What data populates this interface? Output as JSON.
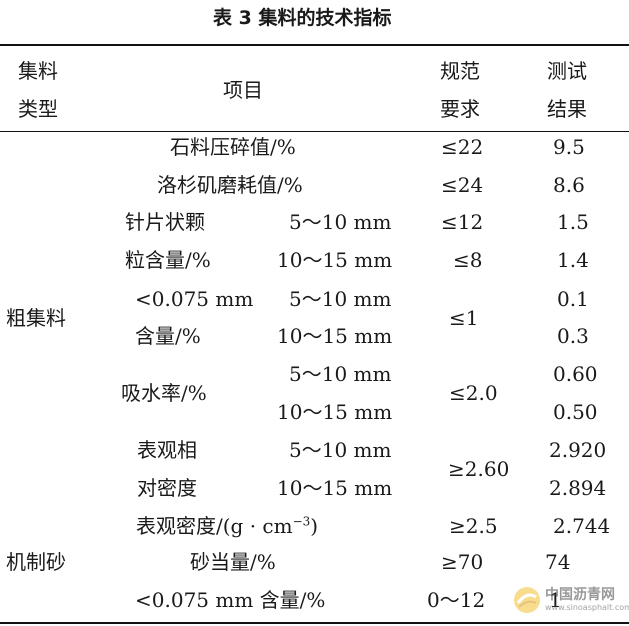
{
  "title": "表 3    集料的技术指标",
  "header": {
    "type_line1": "集料",
    "type_line2": "类型",
    "item": "项目",
    "spec_line1": "规范",
    "spec_line2": "要求",
    "result_line1": "测试",
    "result_line2": "结果"
  },
  "groups": {
    "coarse": "粗集料",
    "sand": "机制砂"
  },
  "rows": {
    "crush": {
      "item": "石料压碎值/%",
      "spec": "≤22",
      "result": "9.5"
    },
    "la": {
      "item": "洛杉矶磨耗值/%",
      "spec": "≤24",
      "result": "8.6"
    },
    "flaky_l1": "针片状颗",
    "flaky_l2": "粒含量/%",
    "flaky_s1": "5～10 mm",
    "flaky_s2": "10～15 mm",
    "flaky_spec1": "≤12",
    "flaky_spec2": "≤8",
    "flaky_r1": "1.5",
    "flaky_r2": "1.4",
    "fines_l1": "<0.075 mm",
    "fines_l2": "含量/%",
    "fines_s1": "5～10 mm",
    "fines_s2": "10～15 mm",
    "fines_spec": "≤1",
    "fines_r1": "0.1",
    "fines_r2": "0.3",
    "abs_l": "吸水率/%",
    "abs_s1": "5～10 mm",
    "abs_s2": "10～15 mm",
    "abs_spec": "≤2.0",
    "abs_r1": "0.60",
    "abs_r2": "0.50",
    "rel_l1": "表观相",
    "rel_l2": "对密度",
    "rel_s1": "5～10 mm",
    "rel_s2": "10～15 mm",
    "rel_spec": "≥2.60",
    "rel_r1": "2.920",
    "rel_r2": "2.894",
    "app_l": "表观密度/(g · cm",
    "app_exp": "−3",
    "app_close": ")",
    "app_spec": "≥2.5",
    "app_r": "2.744",
    "se_l": "砂当量/%",
    "se_spec": "≥70",
    "se_r": "74",
    "sf_l": "<0.075 mm 含量/%",
    "sf_spec": "0～12",
    "sf_r": "1"
  },
  "watermark": {
    "name": "中国沥青网",
    "url": "www.sinoasphalt.com"
  }
}
